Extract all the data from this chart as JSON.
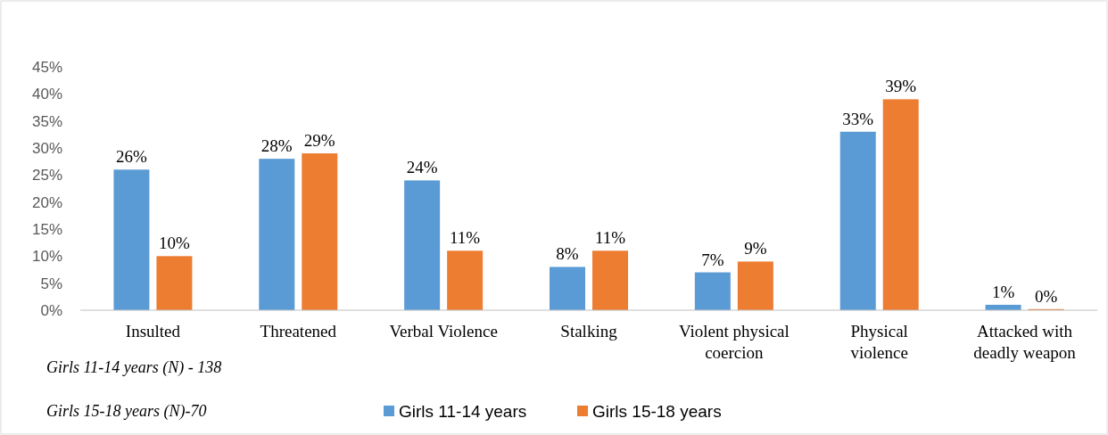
{
  "chart_data": {
    "type": "bar",
    "categories": [
      "Insulted",
      "Threatened",
      "Verbal Violence",
      "Stalking",
      "Violent physical coercion",
      "Physical violence",
      "Attacked with deadly weapon"
    ],
    "series": [
      {
        "name": "Girls 11-14 years",
        "color": "#5b9bd5",
        "values": [
          26,
          28,
          24,
          8,
          7,
          33,
          1
        ],
        "value_labels": [
          "26%",
          "28%",
          "24%",
          "8%",
          "7%",
          "33%",
          "1%"
        ]
      },
      {
        "name": "Girls 15-18 years",
        "color": "#ed7d31",
        "values": [
          10,
          29,
          11,
          11,
          9,
          39,
          0.2
        ],
        "value_labels": [
          "10%",
          "29%",
          "11%",
          "11%",
          "9%",
          "39%",
          "0%"
        ]
      }
    ],
    "ylim": [
      0,
      45
    ],
    "yticks": [
      {
        "value": 0,
        "label": "0%"
      },
      {
        "value": 5,
        "label": "5%"
      },
      {
        "value": 10,
        "label": "10%"
      },
      {
        "value": 15,
        "label": "15%"
      },
      {
        "value": 20,
        "label": "20%"
      },
      {
        "value": 25,
        "label": "25%"
      },
      {
        "value": 30,
        "label": "30%"
      },
      {
        "value": 35,
        "label": "35%"
      },
      {
        "value": 40,
        "label": "40%"
      },
      {
        "value": 45,
        "label": "45%"
      }
    ],
    "grid": false,
    "legend": "bottom",
    "annotations": [
      "Girls 11-14 years (N) - 138",
      "Girls 15-18 years (N)-70"
    ]
  }
}
